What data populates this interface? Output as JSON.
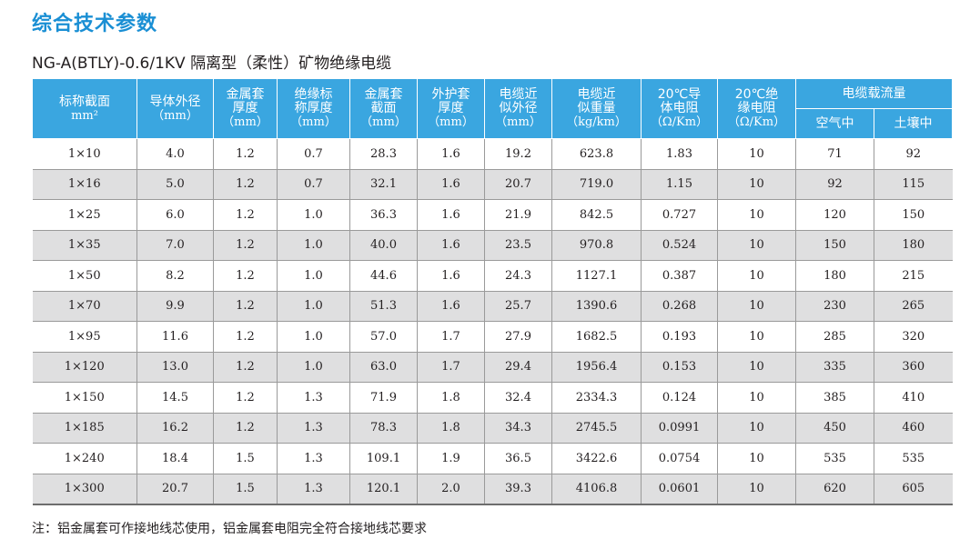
{
  "section_title": "综合技术参数",
  "subtitle": "NG-A(BTLY)-0.6/1KV 隔离型（柔性）矿物绝缘电缆",
  "table": {
    "headers": {
      "nominal_section": [
        "标称截面",
        "mm²"
      ],
      "conductor_od": [
        "导体外径",
        "（mm）"
      ],
      "sheath_thickness": [
        "金属套",
        "厚度",
        "（mm）"
      ],
      "insulation_thickness": [
        "绝缘标",
        "称厚度",
        "（mm）"
      ],
      "sheath_section": [
        "金属套",
        "截面",
        "（mm）"
      ],
      "jacket_thickness": [
        "外护套",
        "厚度",
        "（mm）"
      ],
      "cable_od": [
        "电缆近",
        "似外径",
        "（mm）"
      ],
      "cable_weight": [
        "电缆近",
        "似重量",
        "（kg/km）"
      ],
      "conductor_resistance": [
        "20℃导",
        "体电阻",
        "（Ω/Km）"
      ],
      "insulation_resistance": [
        "20℃绝",
        "缘电阻",
        "（Ω/Km）"
      ],
      "ampacity": "电缆载流量",
      "ampacity_air": "空气中",
      "ampacity_soil": "土壤中"
    },
    "rows": [
      [
        "1×10",
        "4.0",
        "1.2",
        "0.7",
        "28.3",
        "1.6",
        "19.2",
        "623.8",
        "1.83",
        "10",
        "71",
        "92"
      ],
      [
        "1×16",
        "5.0",
        "1.2",
        "0.7",
        "32.1",
        "1.6",
        "20.7",
        "719.0",
        "1.15",
        "10",
        "92",
        "115"
      ],
      [
        "1×25",
        "6.0",
        "1.2",
        "1.0",
        "36.3",
        "1.6",
        "21.9",
        "842.5",
        "0.727",
        "10",
        "120",
        "150"
      ],
      [
        "1×35",
        "7.0",
        "1.2",
        "1.0",
        "40.0",
        "1.6",
        "23.5",
        "970.8",
        "0.524",
        "10",
        "150",
        "180"
      ],
      [
        "1×50",
        "8.2",
        "1.2",
        "1.0",
        "44.6",
        "1.6",
        "24.3",
        "1127.1",
        "0.387",
        "10",
        "180",
        "215"
      ],
      [
        "1×70",
        "9.9",
        "1.2",
        "1.0",
        "51.3",
        "1.6",
        "25.7",
        "1390.6",
        "0.268",
        "10",
        "230",
        "265"
      ],
      [
        "1×95",
        "11.6",
        "1.2",
        "1.0",
        "57.0",
        "1.7",
        "27.9",
        "1682.5",
        "0.193",
        "10",
        "285",
        "320"
      ],
      [
        "1×120",
        "13.0",
        "1.2",
        "1.0",
        "63.0",
        "1.7",
        "29.4",
        "1956.4",
        "0.153",
        "10",
        "335",
        "360"
      ],
      [
        "1×150",
        "14.5",
        "1.2",
        "1.3",
        "71.9",
        "1.8",
        "32.4",
        "2334.3",
        "0.124",
        "10",
        "385",
        "410"
      ],
      [
        "1×185",
        "16.2",
        "1.2",
        "1.3",
        "78.3",
        "1.8",
        "34.3",
        "2745.5",
        "0.0991",
        "10",
        "450",
        "460"
      ],
      [
        "1×240",
        "18.4",
        "1.5",
        "1.3",
        "109.1",
        "1.9",
        "36.5",
        "3422.6",
        "0.0754",
        "10",
        "535",
        "535"
      ],
      [
        "1×300",
        "20.7",
        "1.5",
        "1.3",
        "120.1",
        "2.0",
        "39.3",
        "4106.8",
        "0.0601",
        "10",
        "620",
        "605"
      ]
    ]
  },
  "note": "注：铝金属套可作接地线芯使用，铝金属套电阻完全符合接地线芯要求",
  "colors": {
    "title_blue": "#1a8fd4",
    "header_blue": "#3aa6e0",
    "stripe_gray": "#dfdfe0"
  }
}
